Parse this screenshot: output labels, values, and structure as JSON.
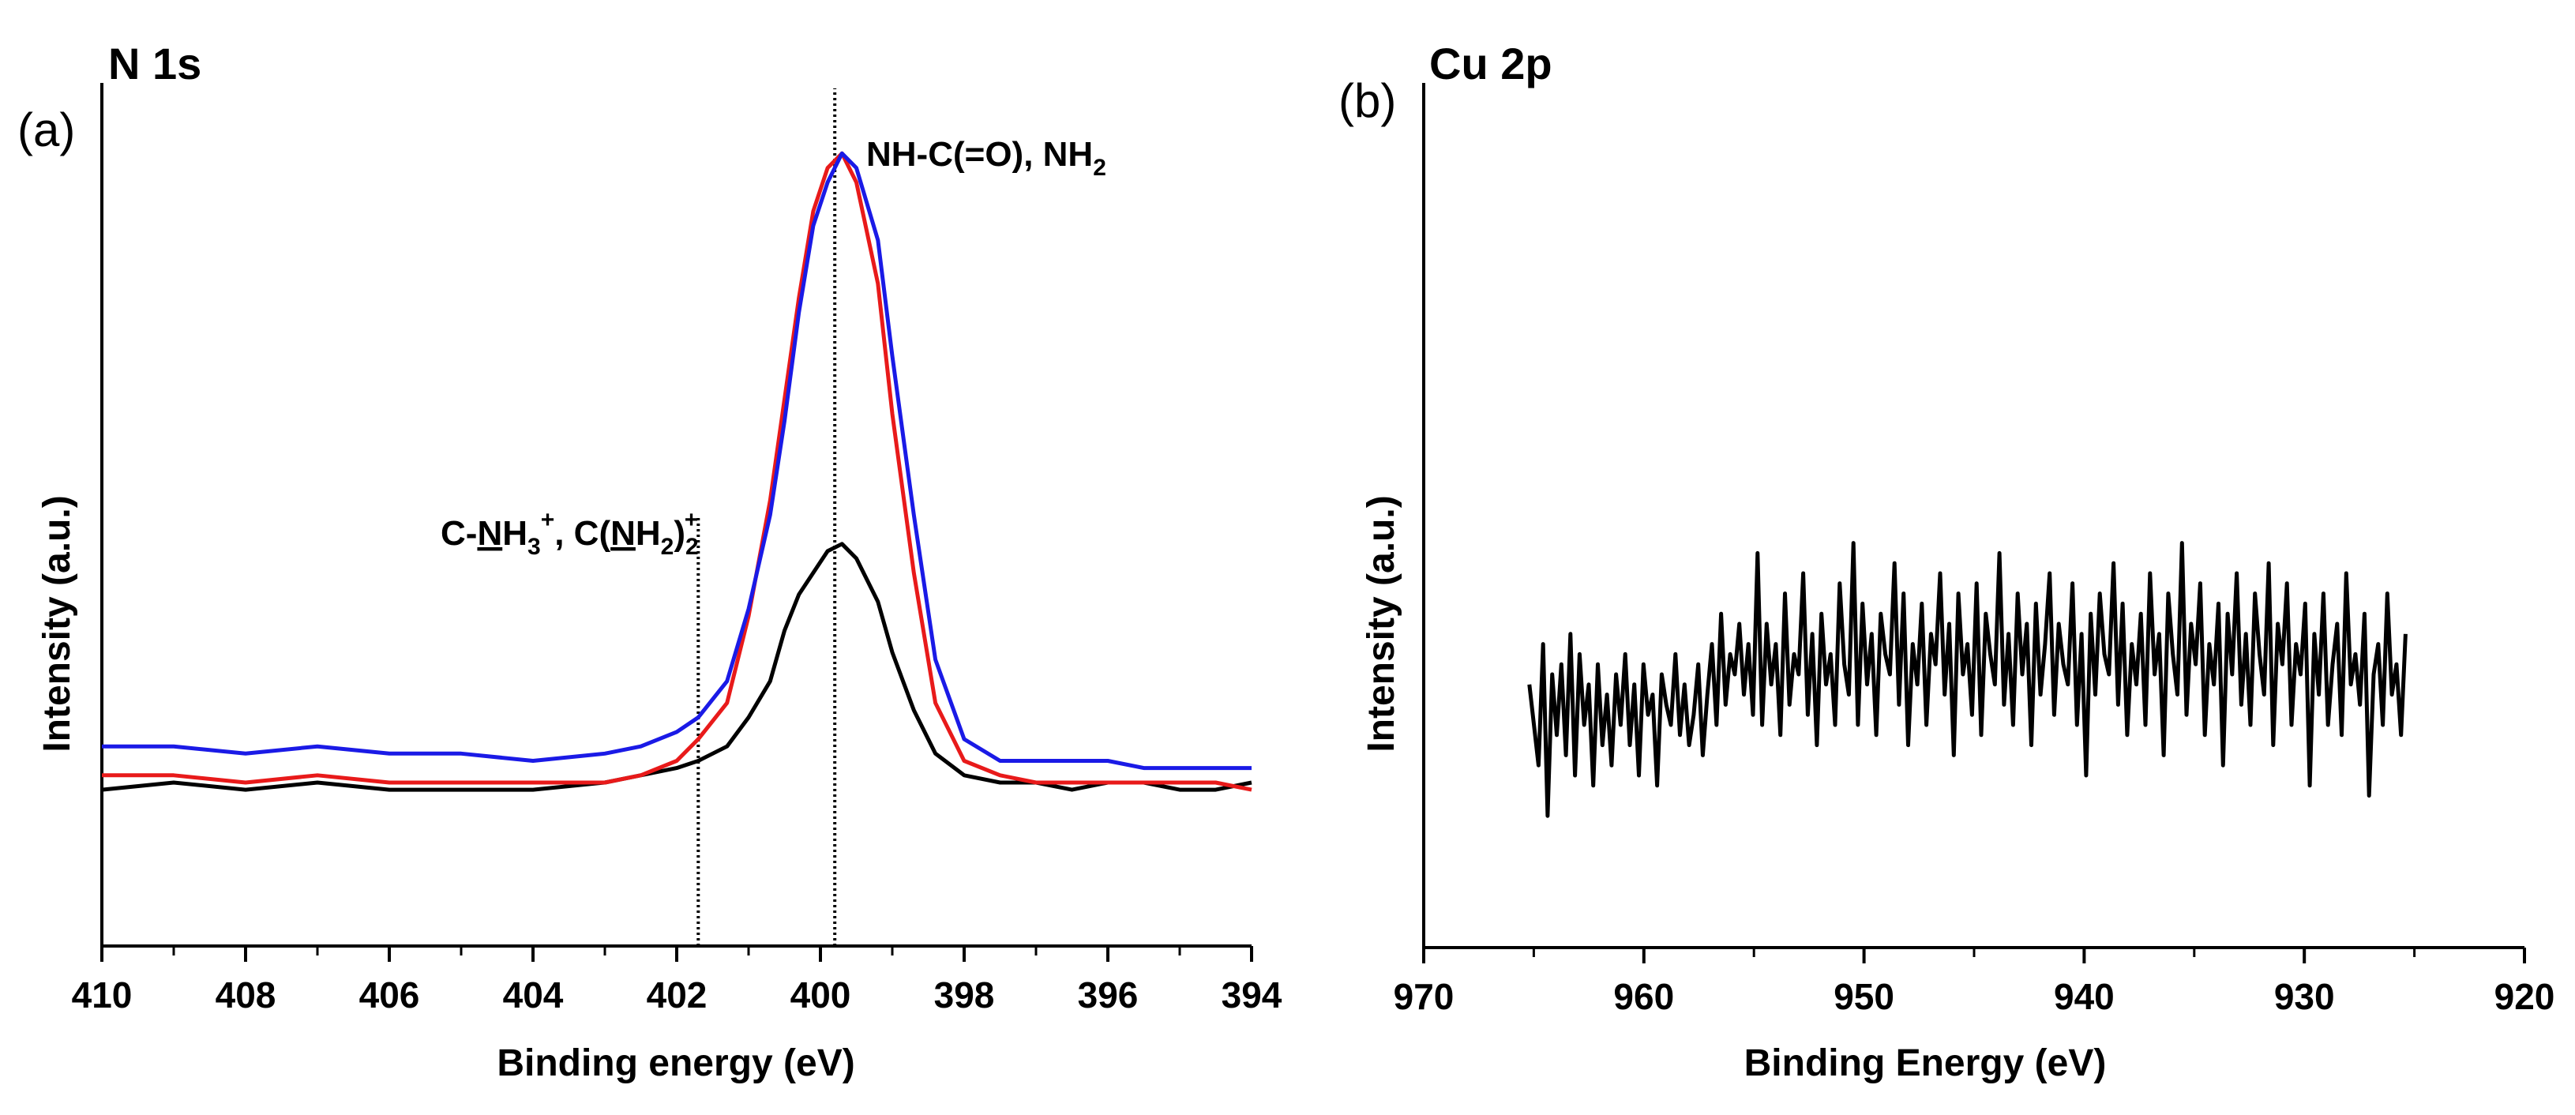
{
  "chart_data": [
    {
      "type": "line",
      "panel_label": "(a)",
      "title": "N 1s",
      "xlabel": "Binding energy (eV)",
      "ylabel": "Intensity (a.u.)",
      "xlim": [
        410,
        394
      ],
      "x_ticks": [
        "410",
        "408",
        "406",
        "404",
        "402",
        "400",
        "398",
        "396",
        "394"
      ],
      "x_tick_values": [
        410,
        408,
        406,
        404,
        402,
        400,
        398,
        396,
        394
      ],
      "ylim": [
        0,
        1.0
      ],
      "y_ticks_visible": false,
      "series": [
        {
          "name": "black",
          "color": "#000000",
          "x": [
            410,
            409,
            408,
            407,
            406,
            405,
            404,
            403,
            402.5,
            402,
            401.7,
            401.3,
            401,
            400.7,
            400.5,
            400.3,
            400.1,
            399.9,
            399.7,
            399.5,
            399.2,
            399,
            398.7,
            398.4,
            398,
            397.5,
            397,
            396.5,
            396,
            395.5,
            395,
            394.5,
            394
          ],
          "values": [
            0.12,
            0.13,
            0.12,
            0.13,
            0.12,
            0.12,
            0.12,
            0.13,
            0.14,
            0.15,
            0.16,
            0.18,
            0.22,
            0.27,
            0.34,
            0.39,
            0.42,
            0.45,
            0.46,
            0.44,
            0.38,
            0.31,
            0.23,
            0.17,
            0.14,
            0.13,
            0.13,
            0.12,
            0.13,
            0.13,
            0.12,
            0.12,
            0.13
          ]
        },
        {
          "name": "red",
          "color": "#e81a1a",
          "x": [
            410,
            409,
            408,
            407,
            406,
            405,
            404,
            403,
            402.5,
            402,
            401.7,
            401.3,
            401,
            400.7,
            400.5,
            400.3,
            400.1,
            399.9,
            399.7,
            399.5,
            399.2,
            399,
            398.7,
            398.4,
            398,
            397.5,
            397,
            396.5,
            396,
            395.5,
            395,
            394.5,
            394
          ],
          "values": [
            0.14,
            0.14,
            0.13,
            0.14,
            0.13,
            0.13,
            0.13,
            0.13,
            0.14,
            0.16,
            0.19,
            0.24,
            0.36,
            0.52,
            0.66,
            0.8,
            0.92,
            0.98,
            1.0,
            0.96,
            0.82,
            0.64,
            0.42,
            0.24,
            0.16,
            0.14,
            0.13,
            0.13,
            0.13,
            0.13,
            0.13,
            0.13,
            0.12
          ]
        },
        {
          "name": "blue",
          "color": "#1a1ae6",
          "x": [
            410,
            409,
            408,
            407,
            406,
            405,
            404,
            403,
            402.5,
            402,
            401.7,
            401.3,
            401,
            400.7,
            400.5,
            400.3,
            400.1,
            399.9,
            399.7,
            399.5,
            399.2,
            399,
            398.7,
            398.4,
            398,
            397.5,
            397,
            396.5,
            396,
            395.5,
            395,
            394.5,
            394
          ],
          "values": [
            0.18,
            0.18,
            0.17,
            0.18,
            0.17,
            0.17,
            0.16,
            0.17,
            0.18,
            0.2,
            0.22,
            0.27,
            0.37,
            0.5,
            0.63,
            0.78,
            0.9,
            0.96,
            1.0,
            0.98,
            0.88,
            0.72,
            0.5,
            0.3,
            0.19,
            0.16,
            0.16,
            0.16,
            0.16,
            0.15,
            0.15,
            0.15,
            0.15
          ]
        }
      ],
      "reference_lines": [
        {
          "x": 401.7,
          "y_top": 0.5,
          "label_parts": [
            "C-",
            "N",
            "H",
            "3",
            "+",
            ", C(",
            "N",
            "H",
            "2",
            ")",
            "2",
            "+"
          ]
        },
        {
          "x": 399.8,
          "y_top": 1.09,
          "label_parts": [
            "NH-C(=O), NH",
            "2"
          ]
        }
      ]
    },
    {
      "type": "line",
      "panel_label": "(b)",
      "title": "Cu 2p",
      "xlabel": "Binding Energy (eV)",
      "ylabel": "Intensity (a.u.)",
      "xlim": [
        970,
        920
      ],
      "x_ticks": [
        "970",
        "960",
        "950",
        "940",
        "930",
        "920"
      ],
      "x_tick_values": [
        970,
        960,
        950,
        940,
        930,
        920
      ],
      "ylim": [
        0,
        1.0
      ],
      "y_ticks_visible": false,
      "series": [
        {
          "name": "Cu 2p",
          "color": "#000000",
          "x_start": 965.2,
          "x_end": 925.4,
          "values": [
            0.38,
            0.3,
            0.22,
            0.46,
            0.12,
            0.4,
            0.28,
            0.42,
            0.24,
            0.48,
            0.2,
            0.44,
            0.3,
            0.38,
            0.18,
            0.42,
            0.26,
            0.36,
            0.22,
            0.4,
            0.3,
            0.44,
            0.26,
            0.38,
            0.2,
            0.42,
            0.32,
            0.36,
            0.18,
            0.4,
            0.34,
            0.3,
            0.44,
            0.28,
            0.38,
            0.26,
            0.32,
            0.42,
            0.24,
            0.36,
            0.46,
            0.3,
            0.52,
            0.34,
            0.44,
            0.4,
            0.5,
            0.36,
            0.46,
            0.32,
            0.64,
            0.3,
            0.5,
            0.38,
            0.46,
            0.28,
            0.56,
            0.34,
            0.44,
            0.4,
            0.6,
            0.32,
            0.48,
            0.26,
            0.52,
            0.38,
            0.44,
            0.3,
            0.58,
            0.42,
            0.36,
            0.66,
            0.3,
            0.54,
            0.38,
            0.48,
            0.28,
            0.52,
            0.44,
            0.4,
            0.62,
            0.34,
            0.56,
            0.26,
            0.46,
            0.38,
            0.54,
            0.3,
            0.48,
            0.42,
            0.6,
            0.36,
            0.5,
            0.24,
            0.56,
            0.4,
            0.46,
            0.32,
            0.58,
            0.28,
            0.52,
            0.44,
            0.38,
            0.64,
            0.34,
            0.48,
            0.3,
            0.56,
            0.4,
            0.5,
            0.26,
            0.54,
            0.36,
            0.46,
            0.6,
            0.32,
            0.5,
            0.42,
            0.38,
            0.58,
            0.3,
            0.48,
            0.2,
            0.52,
            0.36,
            0.56,
            0.44,
            0.4,
            0.62,
            0.34,
            0.54,
            0.28,
            0.46,
            0.38,
            0.52,
            0.3,
            0.6,
            0.4,
            0.48,
            0.24,
            0.56,
            0.44,
            0.36,
            0.66,
            0.32,
            0.5,
            0.42,
            0.58,
            0.28,
            0.46,
            0.38,
            0.54,
            0.22,
            0.52,
            0.4,
            0.6,
            0.34,
            0.48,
            0.3,
            0.56,
            0.44,
            0.36,
            0.62,
            0.26,
            0.5,
            0.42,
            0.58,
            0.3,
            0.46,
            0.4,
            0.54,
            0.18,
            0.48,
            0.36,
            0.56,
            0.3,
            0.42,
            0.5,
            0.28,
            0.6,
            0.38,
            0.44,
            0.34,
            0.52,
            0.16,
            0.4,
            0.46,
            0.3,
            0.56,
            0.36,
            0.42,
            0.28,
            0.48
          ]
        }
      ]
    }
  ]
}
